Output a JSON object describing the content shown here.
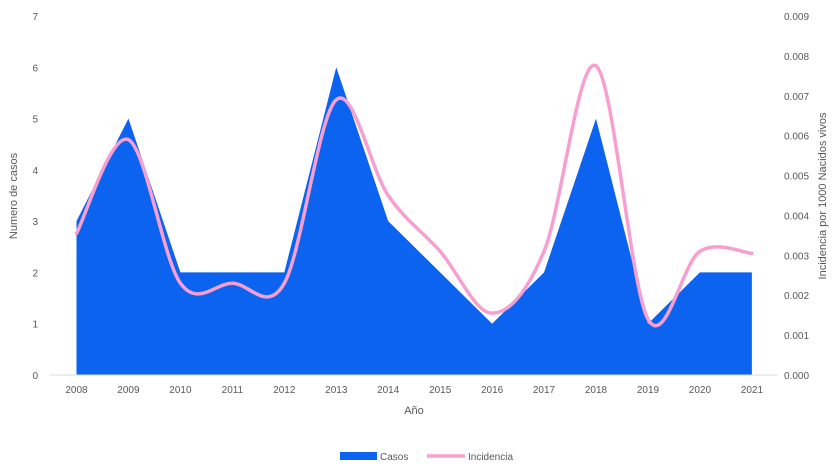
{
  "chart_data": {
    "type": "area",
    "x": [
      "2008",
      "2009",
      "2010",
      "2011",
      "2012",
      "2013",
      "2014",
      "2015",
      "2016",
      "2017",
      "2018",
      "2019",
      "2020",
      "2021"
    ],
    "xlabel": "Año",
    "ylabel": "Numero de casos",
    "y2label": "Incidencia por 1000 Nacidos vivos",
    "ylim": [
      0,
      7
    ],
    "y2lim": [
      0,
      0.009
    ],
    "yticks": [
      "0",
      "1",
      "2",
      "3",
      "4",
      "5",
      "6",
      "7"
    ],
    "y2ticks": [
      "0.000",
      "0.001",
      "0.002",
      "0.003",
      "0.004",
      "0.005",
      "0.006",
      "0.007",
      "0.008",
      "0.009"
    ],
    "grid": false,
    "legend_position": "bottom",
    "series": [
      {
        "name": "Casos",
        "kind": "area",
        "axis": "left",
        "color": "#0b63f0",
        "values": [
          3,
          5,
          2,
          2,
          2,
          6,
          3,
          2,
          1,
          2,
          5,
          1,
          2,
          2
        ]
      },
      {
        "name": "Incidencia",
        "kind": "smooth-line",
        "axis": "right",
        "color": "#f79fd0",
        "values": [
          0.00355,
          0.0059,
          0.0023,
          0.0023,
          0.0023,
          0.0069,
          0.0045,
          0.0031,
          0.00155,
          0.0031,
          0.00775,
          0.0014,
          0.0031,
          0.00305
        ]
      }
    ]
  }
}
